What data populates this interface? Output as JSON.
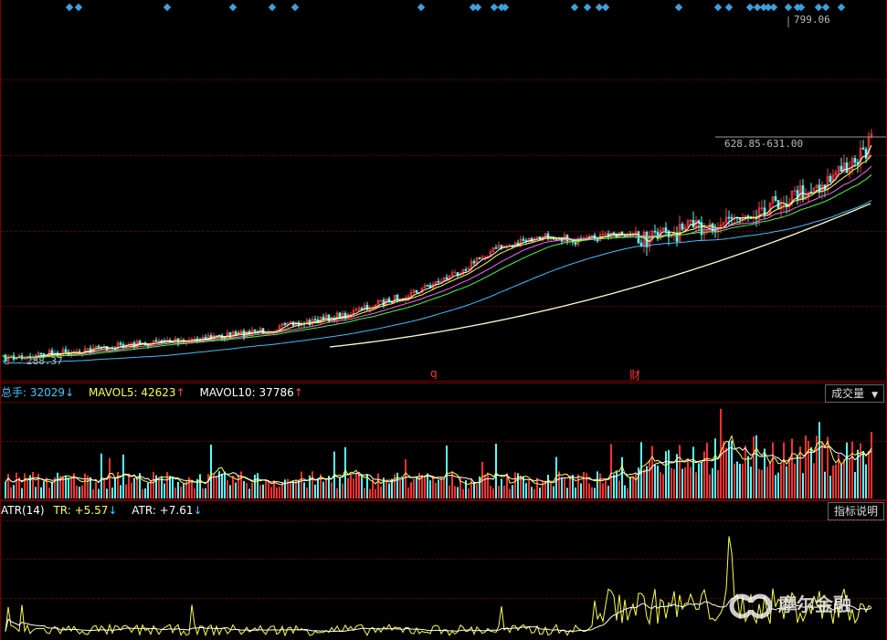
{
  "price": {
    "high_label": "799.06",
    "low_label": "288.37",
    "range_label": "628.85-631.00",
    "event_markers": [
      "q",
      "财"
    ],
    "colors": {
      "up": "#ff3b3b",
      "down": "#54ffff",
      "ma5": "#ffffff",
      "ma10": "#ffff40",
      "ma20": "#ff60ff",
      "ma30": "#40ff40",
      "ma60": "#40c0ff",
      "ma250": "#ffffd0",
      "signal": "#3aa0e0"
    }
  },
  "volume": {
    "items": [
      {
        "label": "总手:",
        "value": "32029",
        "arrow": "↓",
        "color": "#40c8ff"
      },
      {
        "label": "MAVOL5:",
        "value": "42623",
        "arrow": "↑",
        "color": "#ffff40"
      },
      {
        "label": "MAVOL10:",
        "value": "37786",
        "arrow": "↑",
        "color": "#ffffff"
      }
    ],
    "button": "成交量"
  },
  "atr": {
    "items": [
      {
        "label": "ATR(14)",
        "value": "",
        "arrow": "",
        "color": "#ffffff"
      },
      {
        "label": "TR:",
        "value": "+5.57",
        "arrow": "↓",
        "color": "#ffff40"
      },
      {
        "label": "ATR:",
        "value": "+7.61",
        "arrow": "↓",
        "color": "#ffffff"
      }
    ],
    "button": "指标说明"
  },
  "watermark": "摩尔金融"
}
